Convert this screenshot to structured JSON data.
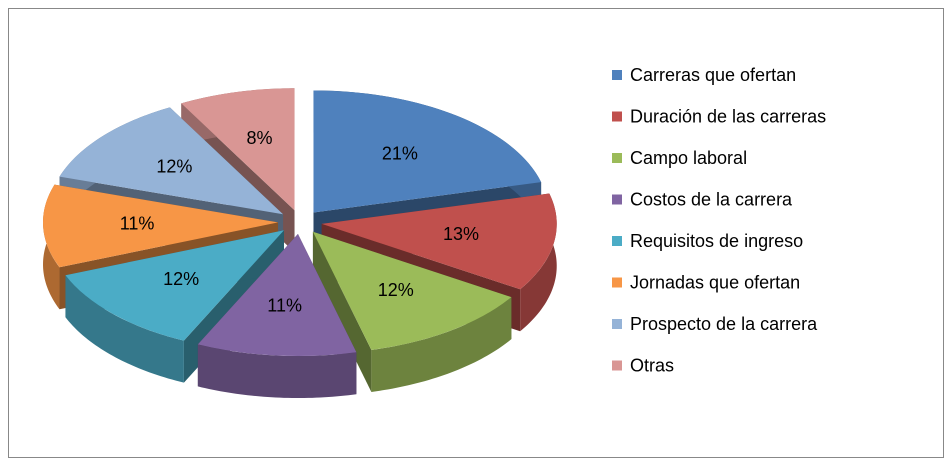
{
  "chart_data": {
    "type": "pie",
    "three_d": true,
    "exploded": true,
    "categories": [
      "Carreras que ofertan",
      "Duración de las carreras",
      "Campo laboral",
      "Costos de la carrera",
      "Requisitos de ingreso",
      "Jornadas que ofertan",
      "Prospecto de la carrera",
      "Otras"
    ],
    "values": [
      21,
      13,
      12,
      11,
      12,
      11,
      12,
      8
    ],
    "value_labels": [
      "21%",
      "13%",
      "12%",
      "11%",
      "12%",
      "11%",
      "12%",
      "8%"
    ],
    "colors": [
      "#4F81BD",
      "#C0504D",
      "#9BBB59",
      "#8064A2",
      "#4BACC6",
      "#F79646",
      "#95B3D7",
      "#D99694"
    ],
    "legend": "right"
  }
}
